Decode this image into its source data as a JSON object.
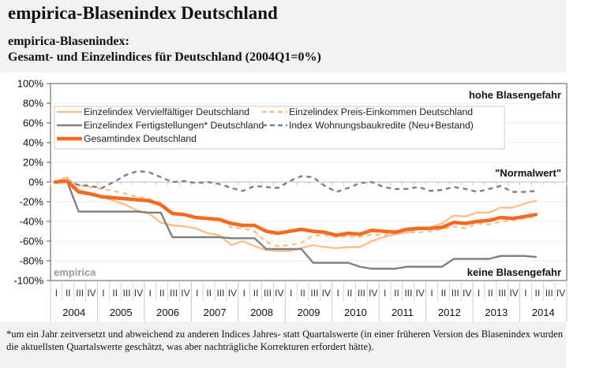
{
  "header": {
    "title": "empirica-Blasenindex Deutschland",
    "subtitle_line1": "empirica-Blasenindex:",
    "subtitle_line2": "Gesamt- und Einzelindices für Deutschland (2004Q1=0%)"
  },
  "footnote": "*um ein Jahr zeitversetzt und abweichend zu anderen Indices Jahres- statt Quartalswerte (in einer früheren Version des Blasenindex wurden die aktuellsten Quartalswerte geschätzt, was aber nachträgliche Korrekturen erfordert hätte).",
  "chart_data": {
    "type": "line",
    "title": "empirica-Blasenindex: Gesamt- und Einzelindices für Deutschland (2004Q1=0%)",
    "xlabel": "",
    "ylabel": "",
    "ylim": [
      -100,
      100
    ],
    "yticks": [
      100,
      80,
      60,
      40,
      20,
      0,
      -20,
      -40,
      -60,
      -80,
      -100
    ],
    "ytick_labels": [
      "100%",
      "80%",
      "60%",
      "40%",
      "20%",
      "0%",
      "-20%",
      "-40%",
      "-60%",
      "-80%",
      "-100%"
    ],
    "grid": true,
    "legend_position": "top-left",
    "quarter_labels": [
      "I",
      "II",
      "III",
      "IV"
    ],
    "years": [
      "2004",
      "2005",
      "2006",
      "2007",
      "2008",
      "2009",
      "2010",
      "2011",
      "2012",
      "2013",
      "2014"
    ],
    "x_start": "2004Q1",
    "annotations": {
      "top_right": "hohe Blasengefahr",
      "normal": "\"Normalwert\"",
      "bottom_right": "keine Blasengefahr",
      "watermark": "empirica"
    },
    "colors": {
      "light_orange": "#fbbf8e",
      "orange": "#f26b21",
      "gray": "#808080",
      "grid": "#cccccc"
    },
    "series": [
      {
        "name": "Einzelindex Vervielfältiger Deutschland",
        "color": "#fbbf8e",
        "style": "solid",
        "width": "thin",
        "values": [
          0,
          5,
          -8,
          -12,
          -15,
          -19,
          -23,
          -29,
          -32,
          -41,
          -44,
          -45,
          -47,
          -52,
          -54,
          -64,
          -60,
          -65,
          -69,
          -70,
          -70,
          -67,
          -64,
          -66,
          -67,
          -66,
          -66,
          -60,
          -56,
          -53,
          -51,
          -48,
          -46,
          -42,
          -34,
          -35,
          -31,
          -31,
          -26,
          -26,
          -22,
          -19
        ]
      },
      {
        "name": "Einzelindex Preis-Einkommen Deutschland",
        "color": "#fbbf8e",
        "style": "dashed",
        "width": "thin",
        "values": [
          0,
          2,
          -3,
          -5,
          -7,
          -9,
          -12,
          -15,
          -17,
          -21,
          -31,
          -33,
          -36,
          -37,
          -38,
          -46,
          -47,
          -50,
          -61,
          -65,
          -64,
          -62,
          -54,
          -54,
          -56,
          -55,
          -56,
          -53,
          -54,
          -53,
          -51,
          -51,
          -50,
          -48,
          -45,
          -47,
          -42,
          -43,
          -40,
          -39,
          -37,
          -35
        ]
      },
      {
        "name": "Einzelindex Fertigstellungen* Deutschland",
        "color": "#808080",
        "style": "solid",
        "width": "thin",
        "values": [
          0,
          1,
          -30,
          -30,
          -30,
          -30,
          -30,
          -30,
          -31,
          -31,
          -56,
          -56,
          -56,
          -56,
          -56,
          -57,
          -57,
          -57,
          -68,
          -68,
          -68,
          -68,
          -82,
          -82,
          -82,
          -82,
          -86,
          -88,
          -88,
          -88,
          -86,
          -86,
          -86,
          -86,
          -78,
          -78,
          -78,
          -78,
          -75,
          -75,
          -75,
          -76
        ]
      },
      {
        "name": "Index Wohnungsbaukredite (Neu+Bestand)",
        "color": "#808080",
        "style": "dashed",
        "width": "thin",
        "values": [
          null,
          1,
          -3,
          -4,
          -6,
          0,
          7,
          11,
          10,
          5,
          0,
          1,
          -1,
          0,
          -2,
          -6,
          -9,
          -4,
          -5,
          -6,
          1,
          6,
          5,
          -4,
          -10,
          -6,
          -1,
          0,
          -5,
          -7,
          -7,
          -5,
          -9,
          -8,
          -5,
          -7,
          -10,
          -7,
          -4,
          -10,
          -10,
          -9
        ]
      },
      {
        "name": "Gesamtindex Deutschland",
        "color": "#f26b21",
        "style": "solid",
        "width": "thick",
        "values": [
          0,
          1,
          -10,
          -12,
          -15,
          -16,
          -17,
          -18,
          -19,
          -23,
          -32,
          -33,
          -36,
          -37,
          -38,
          -42,
          -44,
          -44,
          -50,
          -52,
          -50,
          -48,
          -50,
          -51,
          -54,
          -52,
          -53,
          -49,
          -50,
          -51,
          -48,
          -47,
          -47,
          -46,
          -41,
          -42,
          -40,
          -39,
          -36,
          -37,
          -35,
          -33
        ]
      }
    ]
  }
}
